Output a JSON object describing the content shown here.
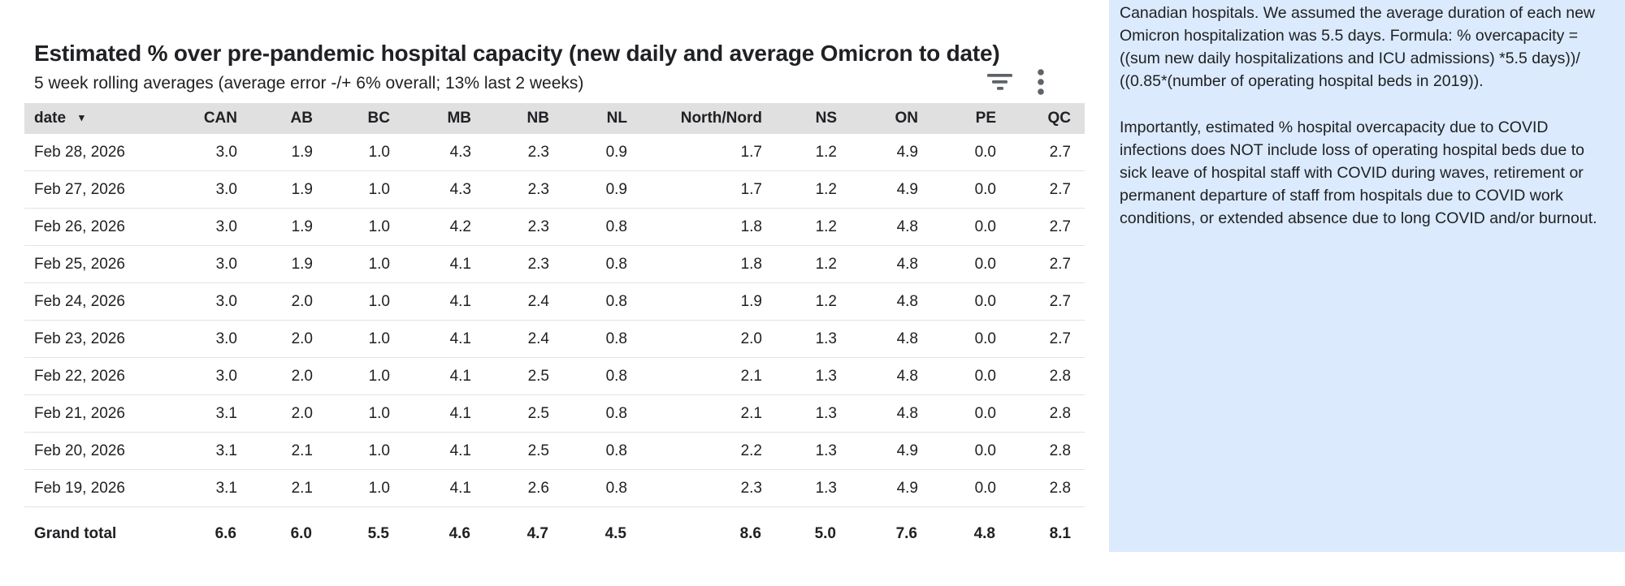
{
  "chart_data": {
    "type": "table",
    "title": "Estimated % over pre-pandemic hospital capacity (new daily and average Omicron to date)",
    "subtitle": "5 week rolling averages (average error -/+ 6% overall; 13% last 2 weeks)",
    "sort": {
      "column": "date",
      "indicator": "▾",
      "direction": "desc"
    },
    "columns": [
      "date",
      "CAN",
      "AB",
      "BC",
      "MB",
      "NB",
      "NL",
      "North/Nord",
      "NS",
      "ON",
      "PE",
      "QC"
    ],
    "rows": [
      {
        "date": "Feb 28, 2026",
        "values": [
          "3.0",
          "1.9",
          "1.0",
          "4.3",
          "2.3",
          "0.9",
          "1.7",
          "1.2",
          "4.9",
          "0.0",
          "2.7"
        ]
      },
      {
        "date": "Feb 27, 2026",
        "values": [
          "3.0",
          "1.9",
          "1.0",
          "4.3",
          "2.3",
          "0.9",
          "1.7",
          "1.2",
          "4.9",
          "0.0",
          "2.7"
        ]
      },
      {
        "date": "Feb 26, 2026",
        "values": [
          "3.0",
          "1.9",
          "1.0",
          "4.2",
          "2.3",
          "0.8",
          "1.8",
          "1.2",
          "4.8",
          "0.0",
          "2.7"
        ]
      },
      {
        "date": "Feb 25, 2026",
        "values": [
          "3.0",
          "1.9",
          "1.0",
          "4.1",
          "2.3",
          "0.8",
          "1.8",
          "1.2",
          "4.8",
          "0.0",
          "2.7"
        ]
      },
      {
        "date": "Feb 24, 2026",
        "values": [
          "3.0",
          "2.0",
          "1.0",
          "4.1",
          "2.4",
          "0.8",
          "1.9",
          "1.2",
          "4.8",
          "0.0",
          "2.7"
        ]
      },
      {
        "date": "Feb 23, 2026",
        "values": [
          "3.0",
          "2.0",
          "1.0",
          "4.1",
          "2.4",
          "0.8",
          "2.0",
          "1.3",
          "4.8",
          "0.0",
          "2.7"
        ]
      },
      {
        "date": "Feb 22, 2026",
        "values": [
          "3.0",
          "2.0",
          "1.0",
          "4.1",
          "2.5",
          "0.8",
          "2.1",
          "1.3",
          "4.8",
          "0.0",
          "2.8"
        ]
      },
      {
        "date": "Feb 21, 2026",
        "values": [
          "3.1",
          "2.0",
          "1.0",
          "4.1",
          "2.5",
          "0.8",
          "2.1",
          "1.3",
          "4.8",
          "0.0",
          "2.8"
        ]
      },
      {
        "date": "Feb 20, 2026",
        "values": [
          "3.1",
          "2.1",
          "1.0",
          "4.1",
          "2.5",
          "0.8",
          "2.2",
          "1.3",
          "4.9",
          "0.0",
          "2.8"
        ]
      },
      {
        "date": "Feb 19, 2026",
        "values": [
          "3.1",
          "2.1",
          "1.0",
          "4.1",
          "2.6",
          "0.8",
          "2.3",
          "1.3",
          "4.9",
          "0.0",
          "2.8"
        ]
      }
    ],
    "grand_total": {
      "label": "Grand total",
      "values": [
        "6.6",
        "6.0",
        "5.5",
        "4.6",
        "4.7",
        "4.5",
        "8.6",
        "5.0",
        "7.6",
        "4.8",
        "8.1"
      ]
    }
  },
  "toolbar": {
    "filter_icon": "filter-list",
    "menu_icon": "kebab-menu"
  },
  "side_panel": {
    "paragraphs": [
      "Canadian hospitals. We assumed the average duration of each new Omicron hospitalization was 5.5 days. Formula: % overcapacity = ((sum new daily hospitalizations and ICU admissions) *5.5 days))/ ((0.85*(number of operating hospital beds in 2019)).",
      "Importantly, estimated % hospital overcapacity due to COVID infections does NOT include loss of operating hospital beds due to sick leave of hospital staff with COVID during waves, retirement or permanent departure of staff from hospitals due to COVID work conditions, or extended absence due to long COVID and/or burnout."
    ]
  },
  "colors": {
    "header_bg": "#e0e0e0",
    "row_divider": "#e3e3e3",
    "panel_bg": "#dbeafc",
    "icon": "#5f6368",
    "text": "#202124"
  }
}
